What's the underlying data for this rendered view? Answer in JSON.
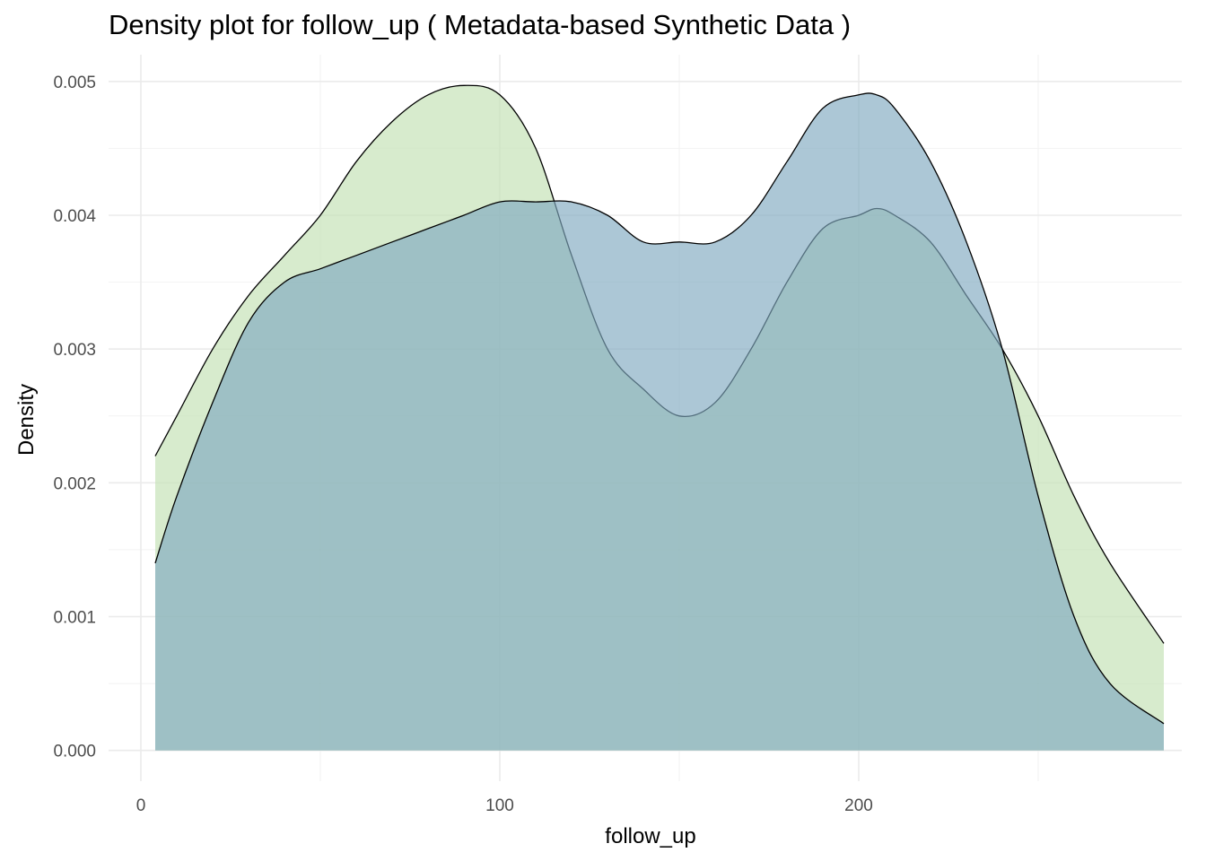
{
  "chart_data": {
    "type": "area",
    "title": "Density plot for follow_up ( Metadata-based Synthetic Data )",
    "xlabel": "follow_up",
    "ylabel": "Density",
    "xlim": [
      -9,
      290
    ],
    "ylim": [
      -0.00023,
      0.0052
    ],
    "x_ticks": [
      0,
      100,
      200
    ],
    "x_tick_labels": [
      "0",
      "100",
      "200"
    ],
    "y_ticks": [
      0.0,
      0.001,
      0.002,
      0.003,
      0.004,
      0.005
    ],
    "y_tick_labels": [
      "0.000",
      "0.001",
      "0.002",
      "0.003",
      "0.004",
      "0.005"
    ],
    "x_minor_ticks": [
      50,
      150,
      250
    ],
    "y_minor_ticks": [
      0.0005,
      0.0015,
      0.0025,
      0.0035,
      0.0045
    ],
    "grid": true,
    "legend": "none",
    "series": [
      {
        "color": "#c6e2b8",
        "opacity": 0.7,
        "x": [
          4,
          10,
          20,
          30,
          40,
          50,
          60,
          70,
          80,
          90,
          100,
          110,
          120,
          130,
          140,
          150,
          160,
          170,
          180,
          190,
          200,
          205,
          210,
          220,
          230,
          240,
          250,
          260,
          270,
          285
        ],
        "y": [
          0.0022,
          0.0025,
          0.003,
          0.0034,
          0.0037,
          0.004,
          0.0044,
          0.0047,
          0.0049,
          0.00497,
          0.0049,
          0.0045,
          0.0037,
          0.003,
          0.0027,
          0.0025,
          0.0026,
          0.003,
          0.0035,
          0.0039,
          0.004,
          0.00405,
          0.004,
          0.0038,
          0.0034,
          0.003,
          0.0025,
          0.0019,
          0.0014,
          0.0008
        ]
      },
      {
        "color": "#7fa9c0",
        "opacity": 0.65,
        "x": [
          4,
          10,
          20,
          30,
          40,
          50,
          60,
          70,
          80,
          90,
          100,
          110,
          120,
          130,
          140,
          150,
          160,
          170,
          180,
          190,
          200,
          205,
          210,
          220,
          230,
          240,
          250,
          260,
          270,
          285
        ],
        "y": [
          0.0014,
          0.0019,
          0.0026,
          0.0032,
          0.0035,
          0.0036,
          0.0037,
          0.0038,
          0.0039,
          0.004,
          0.0041,
          0.0041,
          0.0041,
          0.004,
          0.0038,
          0.0038,
          0.0038,
          0.004,
          0.0044,
          0.0048,
          0.0049,
          0.0049,
          0.0048,
          0.0044,
          0.0038,
          0.003,
          0.0019,
          0.001,
          0.0005,
          0.0002
        ]
      }
    ]
  }
}
